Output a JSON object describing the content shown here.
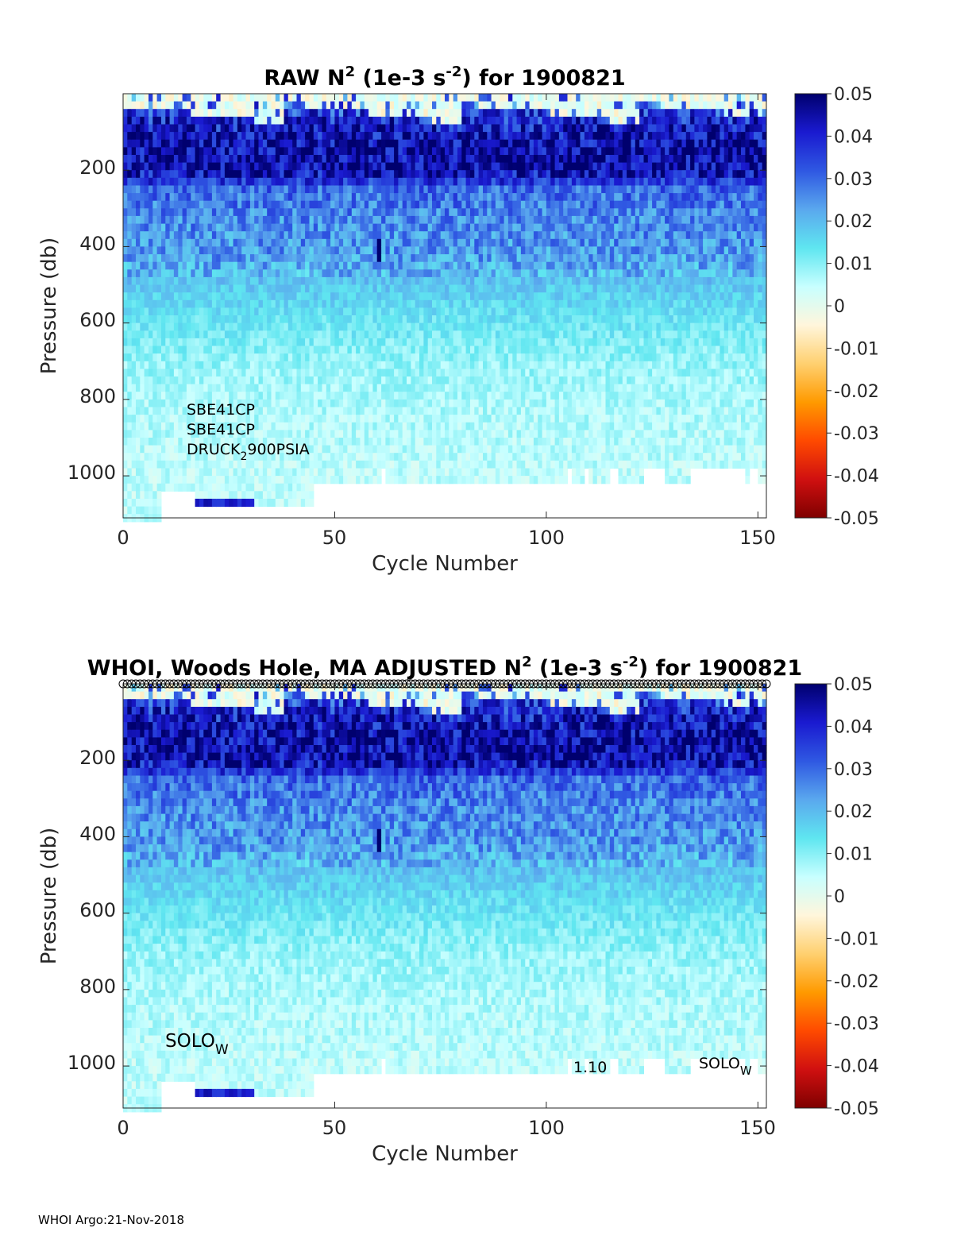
{
  "footer": "WHOI Argo:21-Nov-2018",
  "colorbar_colors": [
    "#7f0000",
    "#d01010",
    "#ff4a00",
    "#ff9a00",
    "#ffd070",
    "#fff6dc",
    "#c8ffff",
    "#5fe6f0",
    "#5aa8ee",
    "#2f58e2",
    "#1a1ad0",
    "#00006e"
  ],
  "chart_data": [
    {
      "type": "heatmap",
      "title": {
        "pre": "RAW N",
        "sup": "2",
        "mid": " (1e-3 s",
        "sup2": "-2",
        "post": ") for 1900821"
      },
      "xlabel": "Cycle Number",
      "ylabel": "Pressure (db)",
      "xlim": [
        0,
        152
      ],
      "ylim": [
        1110,
        0
      ],
      "xticks": [
        "0",
        "50",
        "100",
        "150"
      ],
      "xtick_values": [
        0,
        50,
        100,
        150
      ],
      "yticks": [
        "200",
        "400",
        "600",
        "800",
        "1000"
      ],
      "ytick_values": [
        200,
        400,
        600,
        800,
        1000
      ],
      "colorbar": {
        "range": [
          -0.05,
          0.05
        ],
        "ticks": [
          "0.05",
          "0.04",
          "0.03",
          "0.02",
          "0.01",
          "0",
          "-0.01",
          "-0.02",
          "-0.03",
          "-0.04",
          "-0.05"
        ]
      },
      "annotations": [
        "SBE41CP",
        "SBE41CP",
        {
          "pre": "DRUCK",
          "sub": "2",
          "post": "900PSIA"
        }
      ],
      "depth_profile": [
        {
          "p": 25,
          "v": 0.03
        },
        {
          "p": 75,
          "v": 0.04
        },
        {
          "p": 150,
          "v": 0.045
        },
        {
          "p": 200,
          "v": 0.046
        },
        {
          "p": 250,
          "v": 0.03
        },
        {
          "p": 325,
          "v": 0.026
        },
        {
          "p": 420,
          "v": 0.024
        },
        {
          "p": 520,
          "v": 0.017
        },
        {
          "p": 600,
          "v": 0.013
        },
        {
          "p": 700,
          "v": 0.009
        },
        {
          "p": 800,
          "v": 0.007
        },
        {
          "p": 900,
          "v": 0.006
        },
        {
          "p": 1000,
          "v": 0.005
        },
        {
          "p": 1100,
          "v": 0.005
        }
      ]
    },
    {
      "type": "heatmap",
      "title": {
        "pre": "WHOI, Woods Hole, MA  ADJUSTED N",
        "sup": "2",
        "mid": " (1e-3 s",
        "sup2": "-2",
        "post": ") for 1900821"
      },
      "xlabel": "Cycle Number",
      "ylabel": "Pressure (db)",
      "xlim": [
        0,
        152
      ],
      "ylim": [
        1110,
        0
      ],
      "xticks": [
        "0",
        "50",
        "100",
        "150"
      ],
      "xtick_values": [
        0,
        50,
        100,
        150
      ],
      "yticks": [
        "200",
        "400",
        "600",
        "800",
        "1000"
      ],
      "ytick_values": [
        200,
        400,
        600,
        800,
        1000
      ],
      "colorbar": {
        "range": [
          -0.05,
          0.05
        ],
        "ticks": [
          "0.05",
          "0.04",
          "0.03",
          "0.02",
          "0.01",
          "0",
          "-0.01",
          "-0.02",
          "-0.03",
          "-0.04",
          "-0.05"
        ]
      },
      "annotations": [
        {
          "pre": "SOLO",
          "sub": "W"
        },
        "1.10",
        {
          "pre": "SOLO",
          "sub": "W"
        }
      ],
      "depth_profile": [
        {
          "p": 25,
          "v": 0.03
        },
        {
          "p": 75,
          "v": 0.04
        },
        {
          "p": 150,
          "v": 0.045
        },
        {
          "p": 200,
          "v": 0.046
        },
        {
          "p": 250,
          "v": 0.03
        },
        {
          "p": 325,
          "v": 0.026
        },
        {
          "p": 420,
          "v": 0.024
        },
        {
          "p": 520,
          "v": 0.017
        },
        {
          "p": 600,
          "v": 0.013
        },
        {
          "p": 700,
          "v": 0.009
        },
        {
          "p": 800,
          "v": 0.007
        },
        {
          "p": 900,
          "v": 0.006
        },
        {
          "p": 1000,
          "v": 0.005
        },
        {
          "p": 1100,
          "v": 0.005
        }
      ]
    }
  ]
}
